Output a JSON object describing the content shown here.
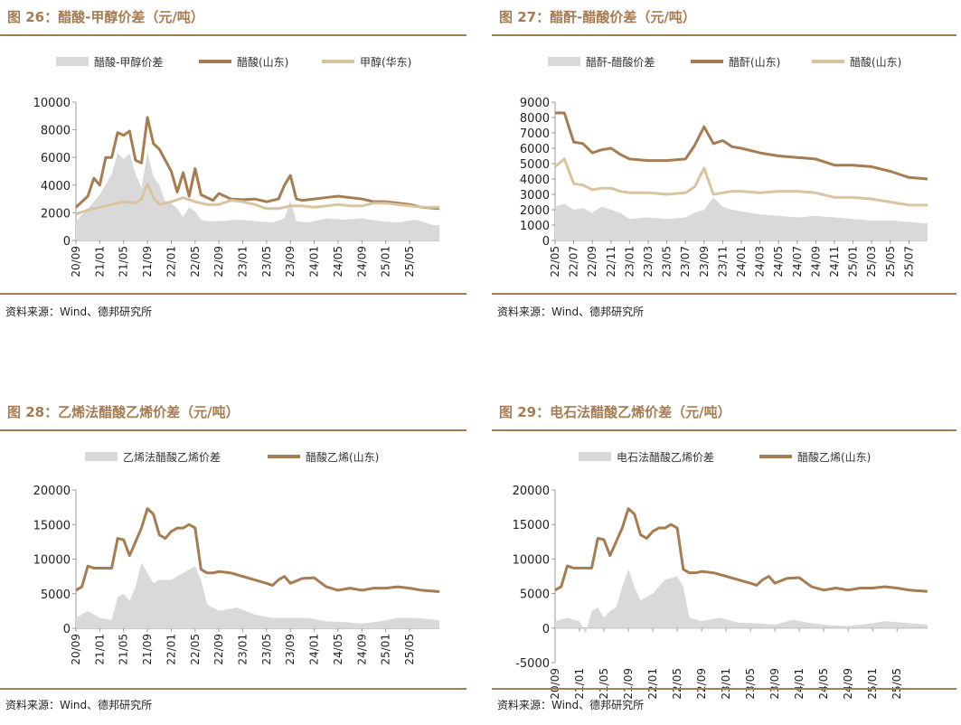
{
  "footer_source": "资料来源：Wind、德邦研究所",
  "colors": {
    "area": "#d9d9d9",
    "main": "#a67c52",
    "second": "#d9c4a0",
    "accent": "#a67c52"
  },
  "chart_data": [
    {
      "type": "area+line",
      "title": "图 26：醋酸-甲醇价差（元/吨）",
      "ylim": [
        0,
        10000
      ],
      "yticks": [
        0,
        2000,
        4000,
        6000,
        8000,
        10000
      ],
      "xlim": [
        "2020-09",
        "2025-10"
      ],
      "xticks": [
        "20/09",
        "21/01",
        "21/05",
        "21/09",
        "22/01",
        "22/05",
        "22/09",
        "23/01",
        "23/05",
        "23/09",
        "24/01",
        "24/05",
        "24/09",
        "25/01",
        "25/05"
      ],
      "series": [
        {
          "name": "醋酸-甲醇价差",
          "kind": "area",
          "x": [
            "2020-09",
            "2020-11",
            "2021-01",
            "2021-03",
            "2021-04",
            "2021-05",
            "2021-06",
            "2021-07",
            "2021-08",
            "2021-09",
            "2021-10",
            "2021-11",
            "2021-12",
            "2022-01",
            "2022-02",
            "2022-03",
            "2022-04",
            "2022-05",
            "2022-06",
            "2022-07",
            "2022-09",
            "2022-12",
            "2023-03",
            "2023-06",
            "2023-08",
            "2023-09",
            "2023-10",
            "2023-12",
            "2024-03",
            "2024-06",
            "2024-09",
            "2024-12",
            "2025-03",
            "2025-06",
            "2025-09",
            "2025-10"
          ],
          "values": [
            1400,
            2300,
            3300,
            4800,
            6300,
            5900,
            6300,
            4800,
            3800,
            6400,
            4600,
            4000,
            2800,
            2700,
            2300,
            1700,
            2400,
            2100,
            1500,
            1400,
            1400,
            1500,
            1400,
            1300,
            1600,
            2900,
            1400,
            1300,
            1600,
            1500,
            1600,
            1400,
            1300,
            1500,
            1100,
            1100
          ]
        },
        {
          "name": "醋酸(山东)",
          "kind": "line",
          "x": [
            "2020-09",
            "2020-11",
            "2020-12",
            "2021-01",
            "2021-02",
            "2021-03",
            "2021-04",
            "2021-05",
            "2021-06",
            "2021-07",
            "2021-08",
            "2021-09",
            "2021-10",
            "2021-11",
            "2021-12",
            "2022-01",
            "2022-02",
            "2022-03",
            "2022-04",
            "2022-05",
            "2022-06",
            "2022-08",
            "2022-09",
            "2022-11",
            "2023-01",
            "2023-03",
            "2023-05",
            "2023-07",
            "2023-08",
            "2023-09",
            "2023-10",
            "2023-11",
            "2024-01",
            "2024-03",
            "2024-05",
            "2024-07",
            "2024-09",
            "2024-11",
            "2025-01",
            "2025-03",
            "2025-05",
            "2025-07",
            "2025-10"
          ],
          "values": [
            2400,
            3200,
            4500,
            4000,
            6000,
            6000,
            7800,
            7600,
            7900,
            5800,
            5600,
            8900,
            7000,
            6600,
            5800,
            5000,
            3500,
            4900,
            3200,
            5200,
            3300,
            2900,
            3400,
            3000,
            2950,
            3000,
            2800,
            3000,
            4000,
            4700,
            3000,
            2900,
            3000,
            3100,
            3200,
            3100,
            3000,
            2800,
            2800,
            2700,
            2600,
            2400,
            2300
          ]
        },
        {
          "name": "甲醇(华东)",
          "kind": "line",
          "x": [
            "2020-09",
            "2020-11",
            "2021-01",
            "2021-03",
            "2021-05",
            "2021-07",
            "2021-08",
            "2021-09",
            "2021-10",
            "2021-11",
            "2022-01",
            "2022-03",
            "2022-05",
            "2022-07",
            "2022-09",
            "2022-11",
            "2023-01",
            "2023-03",
            "2023-05",
            "2023-07",
            "2023-09",
            "2023-11",
            "2024-01",
            "2024-03",
            "2024-05",
            "2024-07",
            "2024-09",
            "2024-11",
            "2025-01",
            "2025-03",
            "2025-05",
            "2025-07",
            "2025-10"
          ],
          "values": [
            1900,
            2200,
            2400,
            2600,
            2800,
            2700,
            3000,
            4100,
            3100,
            2600,
            2800,
            3100,
            2800,
            2600,
            2600,
            2900,
            2800,
            2600,
            2300,
            2300,
            2500,
            2500,
            2400,
            2500,
            2600,
            2500,
            2500,
            2700,
            2700,
            2600,
            2500,
            2400,
            2400
          ]
        }
      ]
    },
    {
      "type": "area+line",
      "title": "图 27：醋酐-醋酸价差（元/吨）",
      "ylim": [
        0,
        9000
      ],
      "yticks": [
        0,
        1000,
        2000,
        3000,
        4000,
        5000,
        6000,
        7000,
        8000,
        9000
      ],
      "xlim": [
        "2022-05",
        "2025-09"
      ],
      "xticks": [
        "22/05",
        "22/07",
        "22/09",
        "22/11",
        "23/01",
        "23/03",
        "23/05",
        "23/07",
        "23/09",
        "23/11",
        "24/01",
        "24/03",
        "24/05",
        "24/07",
        "24/09",
        "24/11",
        "25/01",
        "25/03",
        "25/05",
        "25/07"
      ],
      "series": [
        {
          "name": "醋酐-醋酸价差",
          "kind": "area",
          "x": [
            "2022-05",
            "2022-06",
            "2022-07",
            "2022-08",
            "2022-09",
            "2022-10",
            "2022-11",
            "2022-12",
            "2023-01",
            "2023-03",
            "2023-05",
            "2023-07",
            "2023-08",
            "2023-09",
            "2023-10",
            "2023-11",
            "2023-12",
            "2024-01",
            "2024-03",
            "2024-05",
            "2024-07",
            "2024-09",
            "2024-11",
            "2025-01",
            "2025-03",
            "2025-05",
            "2025-07",
            "2025-09"
          ],
          "values": [
            2200,
            2400,
            2000,
            2100,
            1800,
            2200,
            2000,
            1800,
            1400,
            1500,
            1400,
            1500,
            1800,
            2000,
            2800,
            2200,
            2000,
            1900,
            1700,
            1600,
            1500,
            1600,
            1500,
            1400,
            1300,
            1300,
            1200,
            1100
          ]
        },
        {
          "name": "醋酐(山东)",
          "kind": "line",
          "x": [
            "2022-05",
            "2022-06",
            "2022-07",
            "2022-08",
            "2022-09",
            "2022-10",
            "2022-11",
            "2022-12",
            "2023-01",
            "2023-03",
            "2023-05",
            "2023-07",
            "2023-08",
            "2023-09",
            "2023-10",
            "2023-11",
            "2023-12",
            "2024-01",
            "2024-03",
            "2024-05",
            "2024-07",
            "2024-09",
            "2024-11",
            "2025-01",
            "2025-03",
            "2025-05",
            "2025-07",
            "2025-09"
          ],
          "values": [
            8300,
            8300,
            6400,
            6300,
            5700,
            5900,
            6000,
            5600,
            5300,
            5200,
            5200,
            5300,
            6200,
            7400,
            6300,
            6500,
            6100,
            6000,
            5700,
            5500,
            5400,
            5300,
            4900,
            4900,
            4800,
            4500,
            4100,
            4000
          ]
        },
        {
          "name": "醋酸(山东)",
          "kind": "line",
          "x": [
            "2022-05",
            "2022-06",
            "2022-07",
            "2022-08",
            "2022-09",
            "2022-10",
            "2022-11",
            "2022-12",
            "2023-01",
            "2023-03",
            "2023-05",
            "2023-07",
            "2023-08",
            "2023-09",
            "2023-10",
            "2023-11",
            "2023-12",
            "2024-01",
            "2024-03",
            "2024-05",
            "2024-07",
            "2024-09",
            "2024-11",
            "2025-01",
            "2025-03",
            "2025-05",
            "2025-07",
            "2025-09"
          ],
          "values": [
            4800,
            5300,
            3700,
            3600,
            3300,
            3400,
            3400,
            3200,
            3100,
            3100,
            3000,
            3100,
            3500,
            4700,
            3000,
            3100,
            3200,
            3200,
            3100,
            3200,
            3200,
            3100,
            2800,
            2800,
            2700,
            2500,
            2300,
            2300
          ]
        }
      ]
    },
    {
      "type": "area+line",
      "title": "图 28：乙烯法醋酸乙烯价差（元/吨）",
      "ylim": [
        0,
        20000
      ],
      "yticks": [
        0,
        5000,
        10000,
        15000,
        20000
      ],
      "xlim": [
        "2020-09",
        "2025-10"
      ],
      "xticks": [
        "20/09",
        "21/01",
        "21/05",
        "21/09",
        "22/01",
        "22/05",
        "22/09",
        "23/01",
        "23/05",
        "23/09",
        "24/01",
        "24/05",
        "24/09",
        "25/01",
        "25/05"
      ],
      "series": [
        {
          "name": "乙烯法醋酸乙烯价差",
          "kind": "area",
          "x": [
            "2020-09",
            "2020-11",
            "2021-01",
            "2021-03",
            "2021-04",
            "2021-05",
            "2021-06",
            "2021-07",
            "2021-08",
            "2021-09",
            "2021-10",
            "2021-11",
            "2022-01",
            "2022-03",
            "2022-05",
            "2022-06",
            "2022-07",
            "2022-09",
            "2022-12",
            "2023-03",
            "2023-06",
            "2023-09",
            "2023-12",
            "2024-03",
            "2024-06",
            "2024-09",
            "2024-12",
            "2025-03",
            "2025-06",
            "2025-10"
          ],
          "values": [
            1500,
            2500,
            1500,
            1200,
            4500,
            5000,
            4000,
            6000,
            9500,
            8000,
            6500,
            7000,
            7000,
            8000,
            9000,
            7000,
            3500,
            2500,
            3000,
            2000,
            1500,
            1500,
            1500,
            1000,
            900,
            700,
            1000,
            1500,
            1500,
            1200
          ]
        },
        {
          "name": "醋酸乙烯(山东)",
          "kind": "line",
          "x": [
            "2020-09",
            "2020-10",
            "2020-11",
            "2020-12",
            "2021-02",
            "2021-03",
            "2021-04",
            "2021-05",
            "2021-06",
            "2021-07",
            "2021-08",
            "2021-09",
            "2021-10",
            "2021-11",
            "2021-12",
            "2022-01",
            "2022-02",
            "2022-03",
            "2022-04",
            "2022-05",
            "2022-06",
            "2022-07",
            "2022-08",
            "2022-09",
            "2022-11",
            "2023-01",
            "2023-03",
            "2023-05",
            "2023-06",
            "2023-07",
            "2023-08",
            "2023-09",
            "2023-11",
            "2024-01",
            "2024-03",
            "2024-05",
            "2024-07",
            "2024-09",
            "2024-11",
            "2025-01",
            "2025-03",
            "2025-05",
            "2025-07",
            "2025-10"
          ],
          "values": [
            5500,
            6000,
            9000,
            8700,
            8700,
            8700,
            13000,
            12800,
            10500,
            12500,
            14500,
            17300,
            16500,
            13500,
            13000,
            14000,
            14500,
            14500,
            15000,
            14500,
            8500,
            8000,
            8000,
            8200,
            8000,
            7500,
            7000,
            6500,
            6200,
            7000,
            7500,
            6500,
            7200,
            7300,
            6000,
            5500,
            5800,
            5500,
            5800,
            5800,
            6000,
            5800,
            5500,
            5300
          ]
        }
      ]
    },
    {
      "type": "area+line",
      "title": "图 29：电石法醋酸乙烯价差（元/吨）",
      "ylim": [
        -5000,
        20000
      ],
      "yticks": [
        -5000,
        0,
        5000,
        10000,
        15000,
        20000
      ],
      "xlim": [
        "2020-09",
        "2025-10"
      ],
      "xticks": [
        "20/09",
        "21/01",
        "21/05",
        "21/09",
        "22/01",
        "22/05",
        "22/09",
        "23/01",
        "23/05",
        "23/09",
        "24/01",
        "24/05",
        "24/09",
        "25/01",
        "25/05"
      ],
      "series": [
        {
          "name": "电石法醋酸乙烯价差",
          "kind": "area",
          "x": [
            "2020-09",
            "2020-11",
            "2021-01",
            "2021-02",
            "2021-03",
            "2021-04",
            "2021-05",
            "2021-06",
            "2021-07",
            "2021-08",
            "2021-09",
            "2021-10",
            "2021-11",
            "2022-01",
            "2022-03",
            "2022-05",
            "2022-06",
            "2022-07",
            "2022-09",
            "2022-12",
            "2023-03",
            "2023-06",
            "2023-09",
            "2023-12",
            "2024-03",
            "2024-06",
            "2024-09",
            "2024-12",
            "2025-03",
            "2025-06",
            "2025-10"
          ],
          "values": [
            1000,
            1500,
            1000,
            -800,
            2500,
            3000,
            1500,
            2500,
            3000,
            6000,
            8500,
            6000,
            4000,
            5000,
            7000,
            7500,
            6000,
            1500,
            1000,
            1500,
            800,
            700,
            500,
            1200,
            700,
            400,
            300,
            600,
            1000,
            800,
            500
          ]
        },
        {
          "name": "醋酸乙烯(山东)",
          "kind": "line",
          "x": [
            "2020-09",
            "2020-10",
            "2020-11",
            "2020-12",
            "2021-02",
            "2021-03",
            "2021-04",
            "2021-05",
            "2021-06",
            "2021-07",
            "2021-08",
            "2021-09",
            "2021-10",
            "2021-11",
            "2021-12",
            "2022-01",
            "2022-02",
            "2022-03",
            "2022-04",
            "2022-05",
            "2022-06",
            "2022-07",
            "2022-08",
            "2022-09",
            "2022-11",
            "2023-01",
            "2023-03",
            "2023-05",
            "2023-06",
            "2023-07",
            "2023-08",
            "2023-09",
            "2023-11",
            "2024-01",
            "2024-03",
            "2024-05",
            "2024-07",
            "2024-09",
            "2024-11",
            "2025-01",
            "2025-03",
            "2025-05",
            "2025-07",
            "2025-10"
          ],
          "values": [
            5500,
            6000,
            9000,
            8700,
            8700,
            8700,
            13000,
            12800,
            10500,
            12500,
            14500,
            17300,
            16500,
            13500,
            13000,
            14000,
            14500,
            14500,
            15000,
            14500,
            8500,
            8000,
            8000,
            8200,
            8000,
            7500,
            7000,
            6500,
            6200,
            7000,
            7500,
            6500,
            7200,
            7300,
            6000,
            5500,
            5800,
            5500,
            5800,
            5800,
            6000,
            5800,
            5500,
            5300
          ]
        }
      ]
    }
  ]
}
